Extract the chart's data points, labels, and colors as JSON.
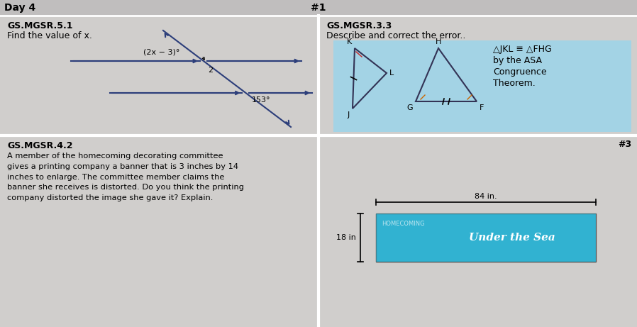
{
  "bg_color": "#c8c8c8",
  "panel_color": "#d2d0ce",
  "top_bar_color": "#b8b6b4",
  "blue_box_color": "#a8d8e8",
  "title_day": "Day 4",
  "title_num1": "#1",
  "title_num3": "#3",
  "gs_left_top_label": "GS.MGSR.5.1",
  "gs_left_top_sub": "Find the value of x.",
  "gs_right_top_label": "GS.MGSR.3.3",
  "gs_right_top_sub": "Describe and correct the error..",
  "gs_bottom_label": "GS.MGSR.4.2",
  "gs_bottom_text": "A member of the homecoming decorating committee\ngives a printing company a banner that is 3 inches by 14\ninches to enlarge. The committee member claims the\nbanner she receives is distorted. Do you think the printing\ncompany distorted the image she gave it? Explain.",
  "congruence_line1": "△JKL ≡ △FHG",
  "congruence_line2": "by the ASA",
  "congruence_line3": "Congruence",
  "congruence_line4": "Theorem.",
  "dim_84": "84 in.",
  "dim_18": "18 in",
  "angle_label": "153°",
  "expr_label": "(2x − 3)°",
  "minus2_label": "2",
  "banner_text": "HOMECOMING",
  "banner_sub": "Under the Sea",
  "white_div": "#ffffff"
}
